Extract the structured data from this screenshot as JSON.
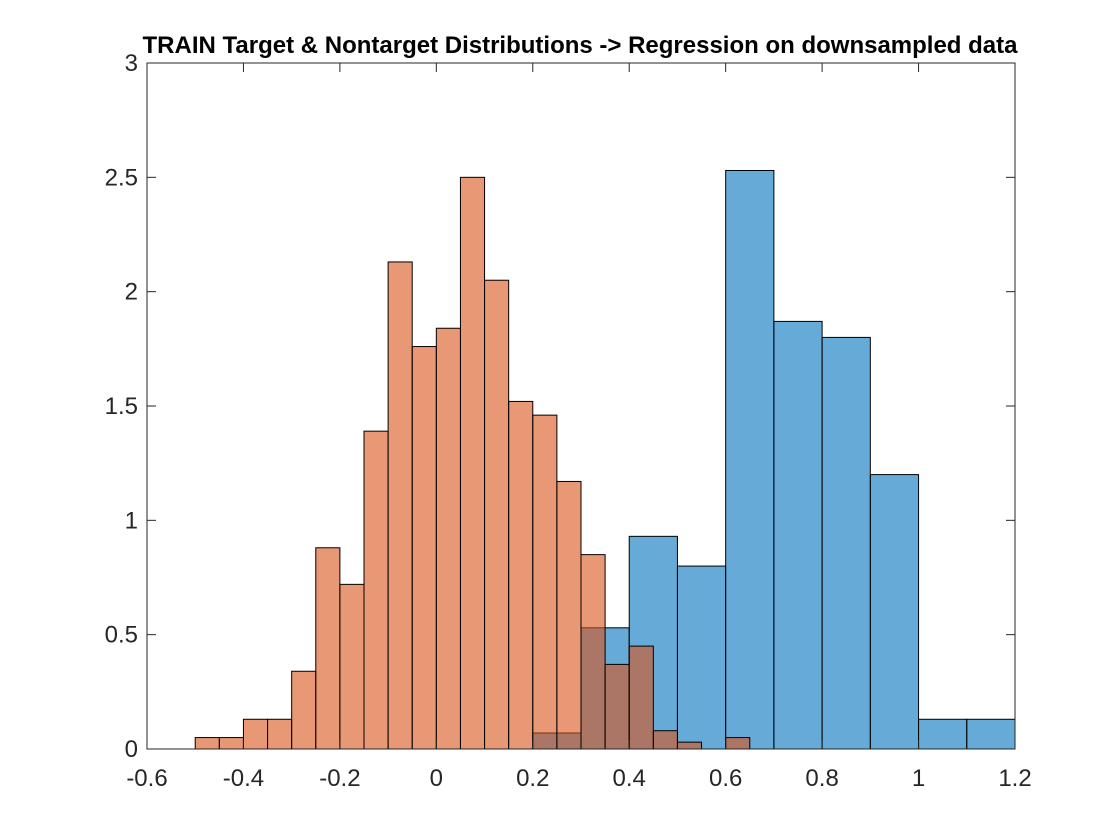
{
  "chart_data": {
    "type": "bar",
    "title": "TRAIN Target & Nontarget Distributions -> Regression on downsampled data",
    "xlabel": "",
    "ylabel": "",
    "xlim": [
      -0.6,
      1.2
    ],
    "ylim": [
      0,
      3
    ],
    "x_ticks": [
      "-0.6",
      "-0.4",
      "-0.2",
      "0",
      "0.2",
      "0.4",
      "0.6",
      "0.8",
      "1",
      "1.2"
    ],
    "y_ticks": [
      "0",
      "0.5",
      "1",
      "1.5",
      "2",
      "2.5",
      "3"
    ],
    "grid": false,
    "legend": "none",
    "series": [
      {
        "color": "#0072BD",
        "face_alpha": 0.6,
        "bin_width": 0.1,
        "bin_edges": [
          0.2,
          0.3,
          0.4,
          0.5,
          0.6,
          0.7,
          0.8,
          0.9,
          1.0,
          1.1,
          1.2
        ],
        "values": [
          0.07,
          0.53,
          0.93,
          0.8,
          2.53,
          1.87,
          1.8,
          1.2,
          0.13,
          0.13
        ]
      },
      {
        "color": "#D95319",
        "face_alpha": 0.6,
        "bin_width": 0.05,
        "bin_edges": [
          -0.5,
          -0.45,
          -0.4,
          -0.35,
          -0.3,
          -0.25,
          -0.2,
          -0.15,
          -0.1,
          -0.05,
          0.0,
          0.05,
          0.1,
          0.15,
          0.2,
          0.25,
          0.3,
          0.35,
          0.4,
          0.45,
          0.5,
          0.55,
          0.6,
          0.65
        ],
        "values": [
          0.05,
          0.05,
          0.13,
          0.13,
          0.34,
          0.88,
          0.72,
          1.39,
          2.13,
          1.76,
          1.84,
          2.5,
          2.05,
          1.52,
          1.46,
          1.17,
          0.85,
          0.37,
          0.45,
          0.08,
          0.03,
          0.0,
          0.05
        ]
      }
    ]
  }
}
